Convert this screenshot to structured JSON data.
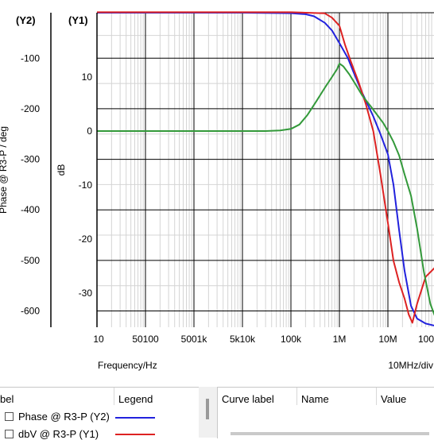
{
  "chart_data": {
    "type": "line",
    "x_axis": {
      "label": "Frequency/Hz",
      "scale": "log",
      "range": [
        10,
        100000000
      ],
      "tick_labels": [
        "10",
        "50100",
        "5001k",
        "5k10k",
        "100k",
        "1M",
        "10M",
        "100"
      ],
      "division_label": "10MHz/div"
    },
    "y1_axis": {
      "tag": "(Y1)",
      "label": "dB",
      "range": [
        -36,
        22
      ],
      "tick_labels": [
        "10",
        "0",
        "-10",
        "-20",
        "-30"
      ],
      "tick_values": [
        10,
        0,
        -10,
        -20,
        -30
      ]
    },
    "y2_axis": {
      "tag": "(Y2)",
      "label": "Phase @ R3-P / deg",
      "range": [
        -630,
        -10
      ],
      "tick_labels": [
        "-100",
        "-200",
        "-300",
        "-400",
        "-500",
        "-600"
      ],
      "tick_values": [
        -100,
        -200,
        -300,
        -400,
        -500,
        -600
      ]
    },
    "grid": true,
    "series": [
      {
        "name": "Phase @ R3-P (Y2)",
        "axis": "y2",
        "color": "#2222dd",
        "x": [
          10,
          100,
          1000,
          10000,
          100000,
          200000,
          300000,
          500000,
          700000,
          1000000,
          1500000,
          2000000,
          3000000,
          5000000,
          7000000,
          10000000,
          13000000,
          17000000,
          22000000,
          30000000,
          40000000,
          60000000,
          100000000
        ],
        "y": [
          -10,
          -10,
          -10,
          -10,
          -11,
          -13,
          -17,
          -30,
          -45,
          -70,
          -100,
          -130,
          -170,
          -215,
          -250,
          -290,
          -350,
          -440,
          -520,
          -590,
          -615,
          -625,
          -630
        ]
      },
      {
        "name": "dbV @ R3-P (Y1)",
        "axis": "y1",
        "color": "#dd2222",
        "x": [
          10,
          100,
          1000,
          10000,
          100000,
          500000,
          700000,
          1000000,
          1300000,
          1700000,
          2500000,
          3500000,
          5000000,
          7000000,
          10000000,
          13000000,
          17000000,
          22000000,
          27000000,
          32000000,
          40000000,
          60000000,
          100000000
        ],
        "y": [
          22,
          22,
          22,
          22,
          22,
          21.8,
          21,
          19.5,
          16,
          13,
          9,
          5,
          0,
          -8,
          -17,
          -24,
          -28,
          -31,
          -34,
          -35.5,
          -32,
          -27,
          -25
        ]
      },
      {
        "name": "",
        "axis": "y1",
        "color": "#33993a",
        "x": [
          10,
          100,
          1000,
          10000,
          30000,
          60000,
          100000,
          150000,
          220000,
          350000,
          500000,
          700000,
          900000,
          1000000,
          1200000,
          1600000,
          2200000,
          3000000,
          4500000,
          6000000,
          8000000,
          10000000,
          13000000,
          17000000,
          22000000,
          30000000,
          40000000,
          55000000,
          75000000,
          100000000
        ],
        "y": [
          0,
          0,
          0,
          0,
          0,
          0.1,
          0.4,
          1.2,
          3,
          5.8,
          8,
          10,
          11.5,
          12.5,
          12,
          10.5,
          8.5,
          6.5,
          4.5,
          3,
          1.5,
          0,
          -2,
          -4.5,
          -8,
          -12,
          -18,
          -26,
          -32,
          -35
        ]
      }
    ]
  },
  "legend_panel": {
    "col_label": "bel",
    "col_legend": "Legend",
    "rows": [
      {
        "label": "Phase @ R3-P (Y2)",
        "color": "#2222dd"
      },
      {
        "label": "dbV @ R3-P (Y1)",
        "color": "#dd2222"
      }
    ]
  },
  "cursor_panel": {
    "col_curve_label": "Curve label",
    "col_name": "Name",
    "col_value": "Value"
  }
}
